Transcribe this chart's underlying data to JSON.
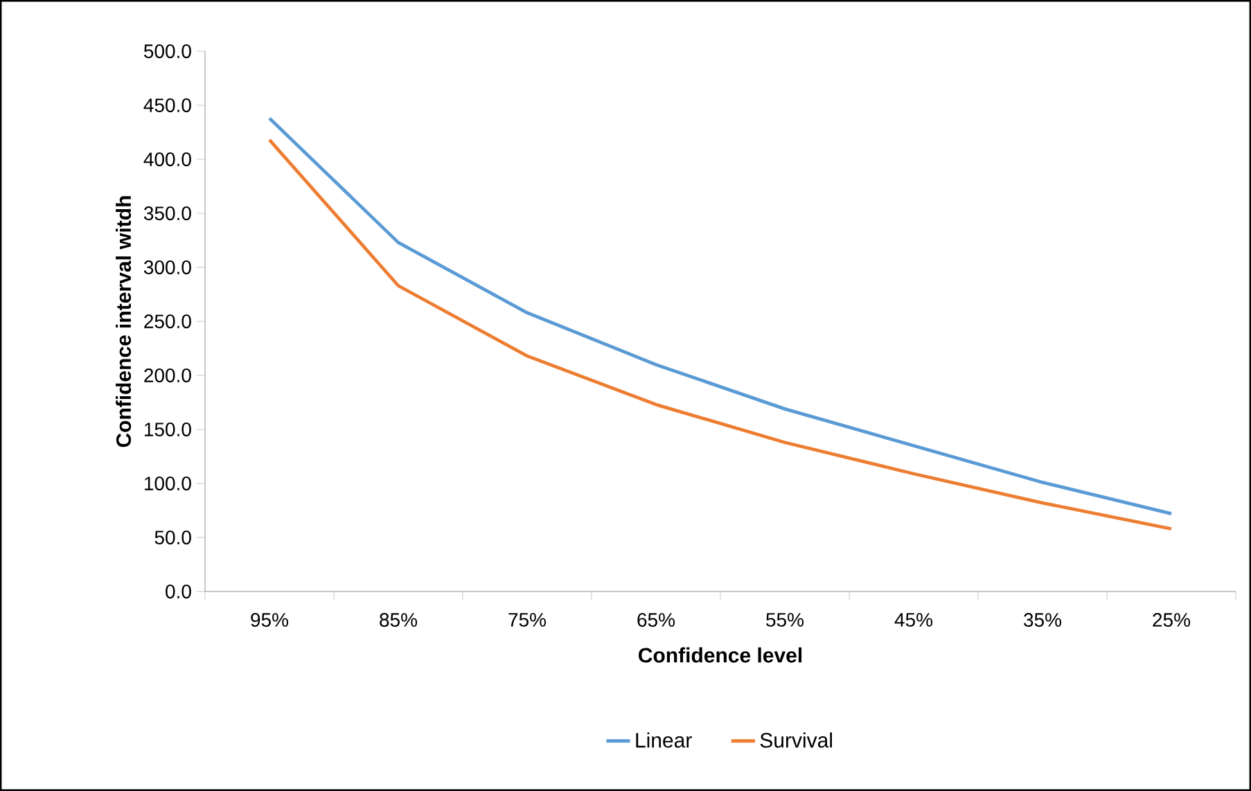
{
  "chart_data": {
    "type": "line",
    "xlabel": "Confidence level",
    "ylabel": "Confidence interval witdh",
    "categories": [
      "95%",
      "85%",
      "75%",
      "65%",
      "55%",
      "45%",
      "35%",
      "25%"
    ],
    "series": [
      {
        "name": "Linear",
        "color": "#5b9bd5",
        "values": [
          438,
          323,
          258,
          210,
          169,
          135,
          101,
          72
        ]
      },
      {
        "name": "Survival",
        "color": "#ed7d31",
        "values": [
          418,
          283,
          218,
          173,
          138,
          109,
          82,
          58
        ]
      }
    ],
    "ylim": [
      0,
      500
    ],
    "yticks": [
      {
        "value": 0,
        "label": "0.0"
      },
      {
        "value": 50,
        "label": "50.0"
      },
      {
        "value": 100,
        "label": "100.0"
      },
      {
        "value": 150,
        "label": "150.0"
      },
      {
        "value": 200,
        "label": "200.0"
      },
      {
        "value": 250,
        "label": "250.0"
      },
      {
        "value": 300,
        "label": "300.0"
      },
      {
        "value": 350,
        "label": "350.0"
      },
      {
        "value": 400,
        "label": "400.0"
      },
      {
        "value": 450,
        "label": "450.0"
      },
      {
        "value": 500,
        "label": "500.0"
      }
    ],
    "grid": false,
    "legend": "bottom",
    "marker": "none",
    "line_style": "solid"
  }
}
